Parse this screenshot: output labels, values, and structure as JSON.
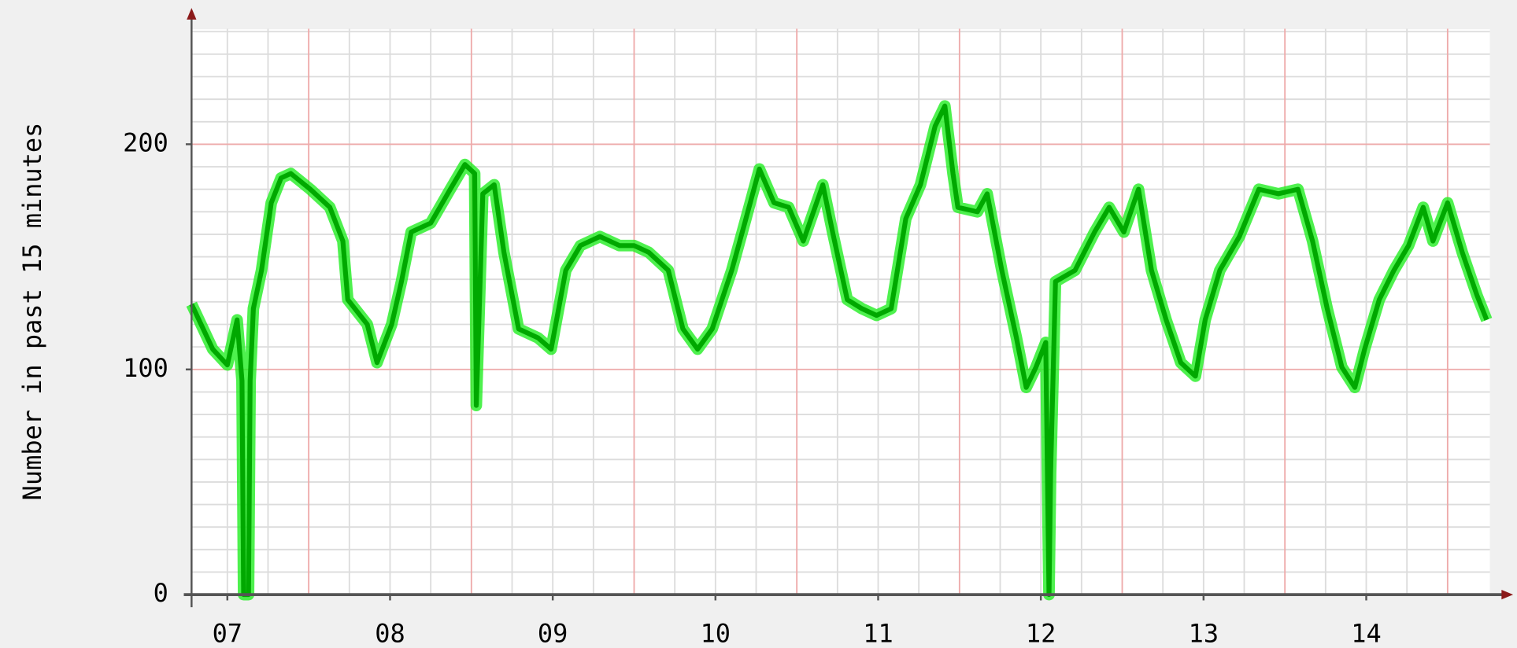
{
  "chart_data": {
    "type": "line",
    "y_axis_label": "Number in past 15 minutes",
    "x": [
      7.28,
      7.41,
      7.5,
      7.56,
      7.59,
      7.6,
      7.63,
      7.64,
      7.66,
      7.71,
      7.77,
      7.83,
      7.89,
      8.01,
      8.13,
      8.21,
      8.24,
      8.36,
      8.42,
      8.51,
      8.57,
      8.63,
      8.75,
      8.87,
      8.96,
      9.02,
      9.03,
      9.07,
      9.14,
      9.2,
      9.29,
      9.41,
      9.49,
      9.58,
      9.67,
      9.79,
      9.91,
      10.0,
      10.09,
      10.21,
      10.3,
      10.39,
      10.48,
      10.6,
      10.68,
      10.77,
      10.86,
      10.95,
      11.04,
      11.16,
      11.22,
      11.31,
      11.4,
      11.49,
      11.58,
      11.67,
      11.76,
      11.85,
      11.91,
      11.96,
      11.99,
      12.11,
      12.17,
      12.26,
      12.35,
      12.41,
      12.47,
      12.53,
      12.55,
      12.56,
      12.59,
      12.71,
      12.83,
      12.92,
      13.01,
      13.1,
      13.18,
      13.27,
      13.36,
      13.45,
      13.51,
      13.6,
      13.72,
      13.84,
      13.96,
      14.08,
      14.17,
      14.26,
      14.35,
      14.43,
      14.49,
      14.58,
      14.67,
      14.76,
      14.85,
      14.91,
      15.0,
      15.09,
      15.18,
      15.24
    ],
    "series": [
      {
        "color": "#00a800",
        "values": [
          129,
          109,
          102,
          122,
          95,
          0,
          0,
          95,
          127,
          144,
          174,
          185,
          187,
          180,
          172,
          157,
          131,
          120,
          103,
          120,
          139,
          161,
          165,
          180,
          191,
          187,
          84,
          178,
          182,
          152,
          118,
          114,
          109,
          144,
          155,
          159,
          155,
          155,
          152,
          144,
          118,
          109,
          118,
          144,
          165,
          189,
          174,
          172,
          157,
          182,
          161,
          131,
          127,
          124,
          127,
          167,
          182,
          208,
          217,
          187,
          172,
          170,
          178,
          144,
          114,
          92,
          101,
          112,
          0,
          54,
          139,
          144,
          161,
          172,
          161,
          180,
          144,
          122,
          103,
          97,
          122,
          144,
          159,
          180,
          178,
          180,
          157,
          127,
          101,
          92,
          109,
          131,
          144,
          155,
          172,
          157,
          174,
          152,
          133,
          122
        ]
      }
    ],
    "xlim": [
      7.28,
      15.26
    ],
    "xticks": [
      {
        "value": 7.5,
        "label": "07"
      },
      {
        "value": 8.5,
        "label": "08"
      },
      {
        "value": 9.5,
        "label": "09"
      },
      {
        "value": 10.5,
        "label": "10"
      },
      {
        "value": 11.5,
        "label": "11"
      },
      {
        "value": 12.5,
        "label": "12"
      },
      {
        "value": 13.5,
        "label": "13"
      },
      {
        "value": 14.5,
        "label": "14"
      }
    ],
    "x_major_grid": [
      8,
      9,
      10,
      11,
      12,
      13,
      14,
      15
    ],
    "x_minor_grid": [
      7.5,
      7.75,
      8.25,
      8.5,
      8.75,
      9.25,
      9.5,
      9.75,
      10.25,
      10.5,
      10.75,
      11.25,
      11.5,
      11.75,
      12.25,
      12.5,
      12.75,
      13.25,
      13.5,
      13.75,
      14.25,
      14.5,
      14.75
    ],
    "ylim": [
      0,
      250
    ],
    "yticks": [
      0,
      100,
      200
    ],
    "y_minor_grid": [
      10,
      20,
      30,
      40,
      50,
      60,
      70,
      80,
      90,
      110,
      120,
      130,
      140,
      150,
      160,
      170,
      180,
      190,
      210,
      220,
      230,
      240,
      250
    ],
    "grid": true
  }
}
